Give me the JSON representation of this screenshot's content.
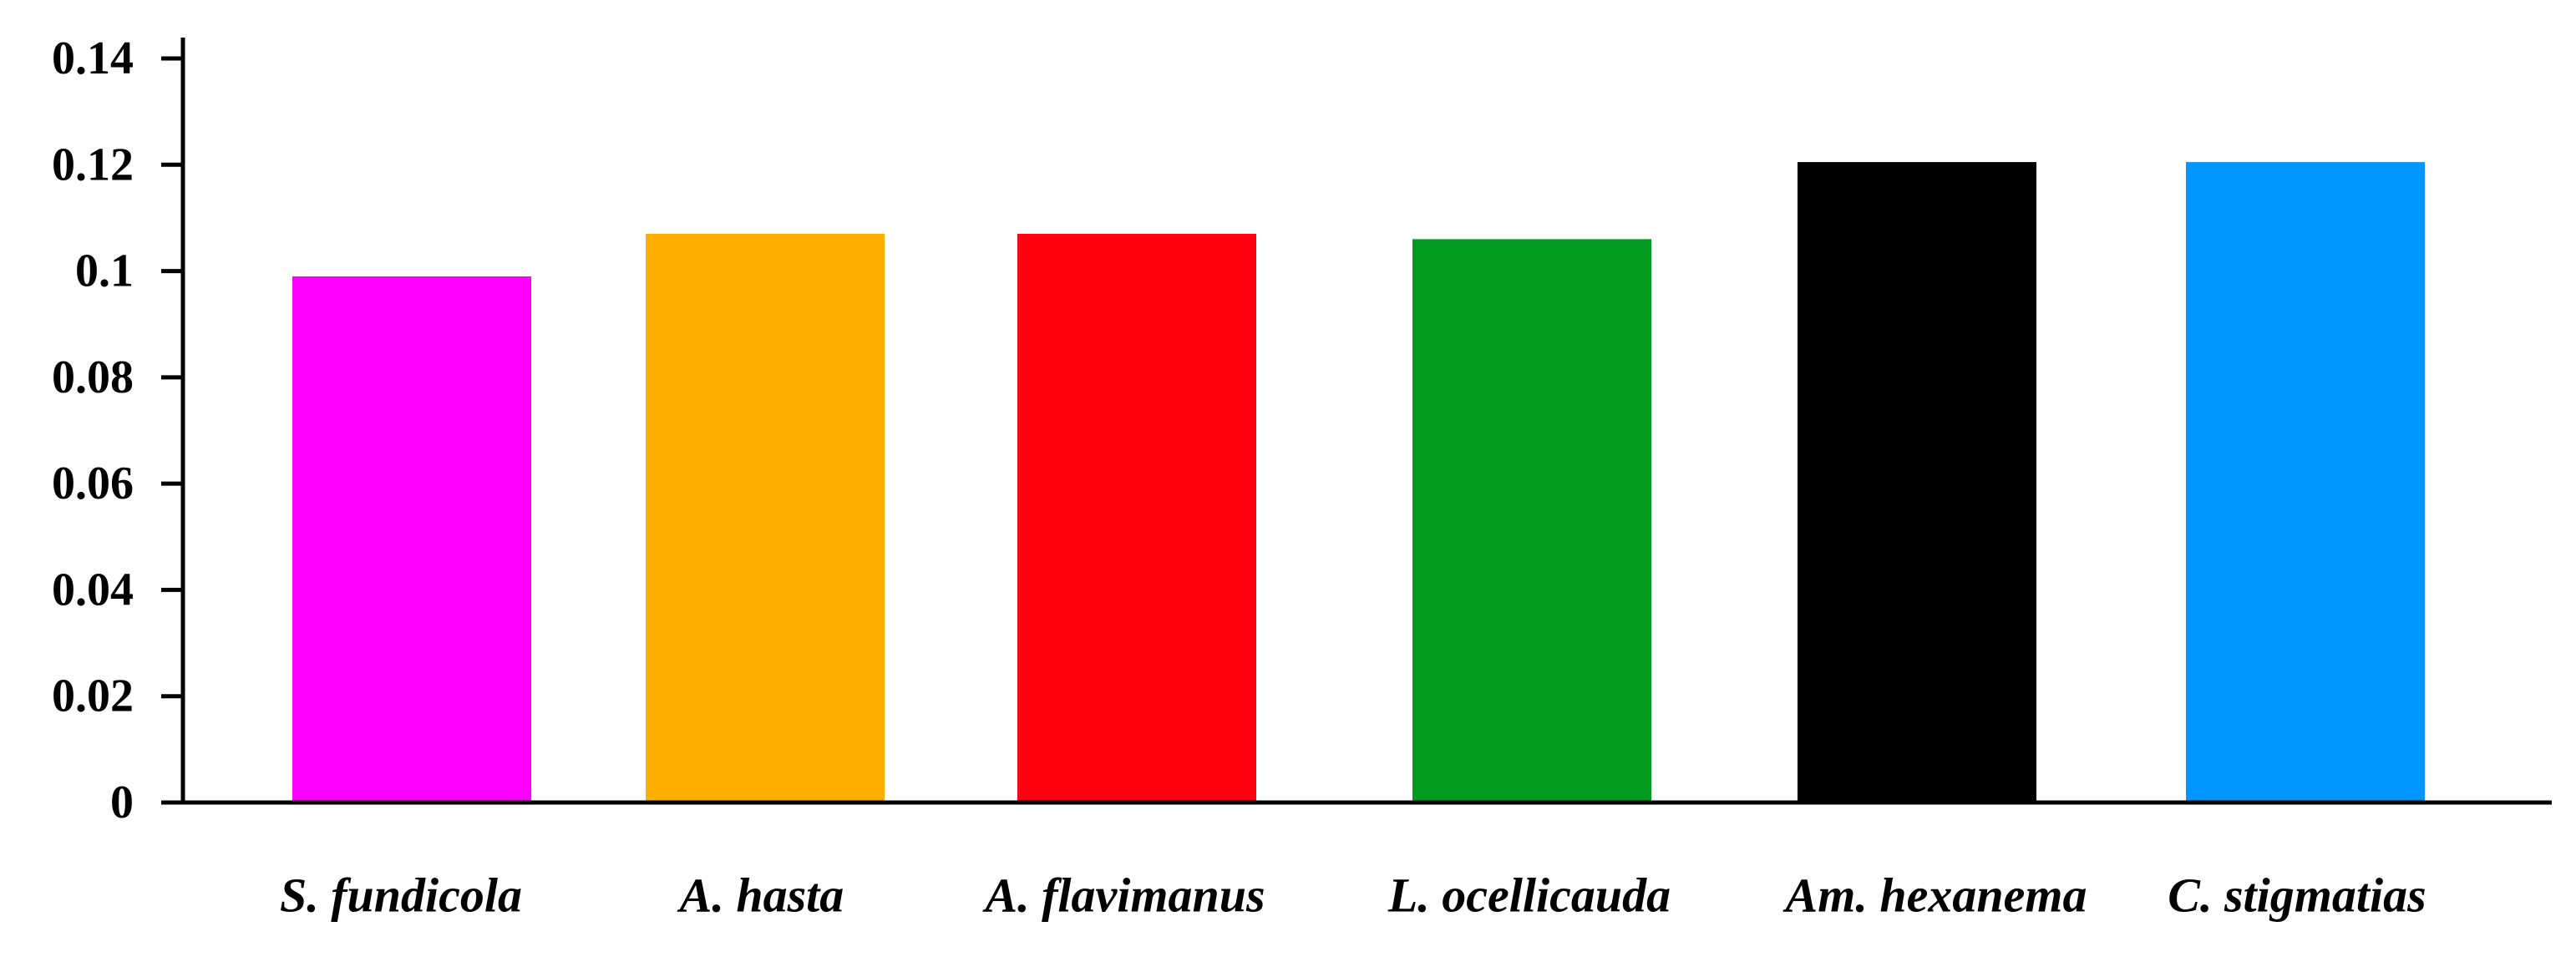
{
  "chart_data": {
    "type": "bar",
    "title": "",
    "xlabel": "",
    "ylabel": "",
    "categories": [
      "S. fundicola",
      "A. hasta",
      "A. flavimanus",
      "L. ocellicauda",
      "Am. hexanema",
      "C. stigmatias"
    ],
    "values": [
      0.099,
      0.107,
      0.107,
      0.106,
      0.1205,
      0.1205
    ],
    "colors": [
      "#FF00FF",
      "#FFAF00",
      "#FF0010",
      "#009A20",
      "#000000",
      "#0096FF"
    ],
    "ylim": [
      0,
      0.14
    ],
    "yticks": [
      0,
      0.02,
      0.04,
      0.06,
      0.08,
      0.1,
      0.12,
      0.14
    ],
    "ytick_labels": [
      "0",
      "0.02",
      "0.04",
      "0.06",
      "0.08",
      "0.1",
      "0.12",
      "0.14"
    ],
    "grid": false,
    "legend": "none"
  }
}
